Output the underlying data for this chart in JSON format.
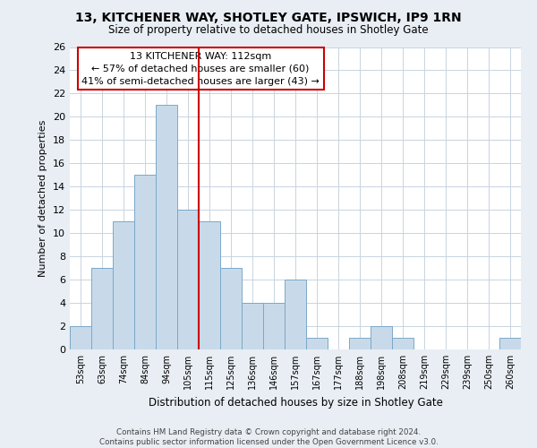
{
  "title": "13, KITCHENER WAY, SHOTLEY GATE, IPSWICH, IP9 1RN",
  "subtitle": "Size of property relative to detached houses in Shotley Gate",
  "xlabel": "Distribution of detached houses by size in Shotley Gate",
  "ylabel": "Number of detached properties",
  "bin_labels": [
    "53sqm",
    "63sqm",
    "74sqm",
    "84sqm",
    "94sqm",
    "105sqm",
    "115sqm",
    "125sqm",
    "136sqm",
    "146sqm",
    "157sqm",
    "167sqm",
    "177sqm",
    "188sqm",
    "198sqm",
    "208sqm",
    "219sqm",
    "229sqm",
    "239sqm",
    "250sqm",
    "260sqm"
  ],
  "bar_heights": [
    2,
    7,
    11,
    15,
    21,
    12,
    11,
    7,
    4,
    4,
    6,
    1,
    0,
    1,
    2,
    1,
    0,
    0,
    0,
    0,
    1
  ],
  "bar_color": "#c8daea",
  "bar_edge_color": "#7aa8c8",
  "vline_x": 5.5,
  "vline_color": "#cc0000",
  "annotation_title": "13 KITCHENER WAY: 112sqm",
  "annotation_line1": "← 57% of detached houses are smaller (60)",
  "annotation_line2": "41% of semi-detached houses are larger (43) →",
  "annotation_box_color": "#ffffff",
  "annotation_box_edge": "#cc0000",
  "ylim": [
    0,
    26
  ],
  "yticks": [
    0,
    2,
    4,
    6,
    8,
    10,
    12,
    14,
    16,
    18,
    20,
    22,
    24,
    26
  ],
  "footer_line1": "Contains HM Land Registry data © Crown copyright and database right 2024.",
  "footer_line2": "Contains public sector information licensed under the Open Government Licence v3.0.",
  "bg_color": "#e8eef4",
  "plot_bg_color": "#ffffff",
  "grid_color": "#c8d4e0"
}
